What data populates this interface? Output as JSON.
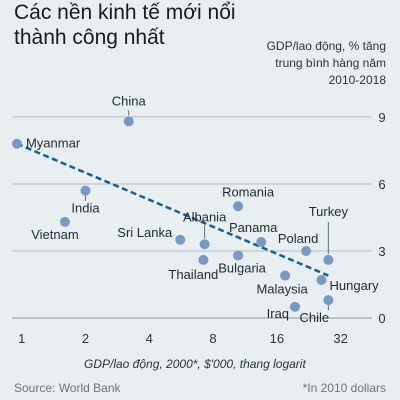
{
  "chart_data": {
    "type": "scatter",
    "title": "Các nền kinh tế mới nổi thành công nhất",
    "ylabel_lines": [
      "GDP/lao động, % tăng",
      "trung bình hàng năm",
      "2010-2018"
    ],
    "xlabel": "GDP/lao động, 2000*, $'000, thang logarit",
    "x_scale": "log",
    "x_ticks": [
      1,
      2,
      4,
      8,
      16,
      32
    ],
    "x_tick_labels": [
      "1",
      "2",
      "4",
      "8",
      "16",
      "32"
    ],
    "xlim": [
      0.9,
      45
    ],
    "y_ticks": [
      0,
      3,
      6,
      9
    ],
    "y_tick_labels": [
      "0",
      "3",
      "6",
      "9"
    ],
    "ylim": [
      0,
      9.4
    ],
    "grid": "horizontal",
    "points": [
      {
        "label": "Myanmar",
        "x": 0.95,
        "y": 7.8
      },
      {
        "label": "China",
        "x": 3.2,
        "y": 8.8
      },
      {
        "label": "India",
        "x": 2.0,
        "y": 5.7
      },
      {
        "label": "Vietnam",
        "x": 1.6,
        "y": 4.3
      },
      {
        "label": "Romania",
        "x": 10.5,
        "y": 5.0
      },
      {
        "label": "Sri Lanka",
        "x": 5.6,
        "y": 3.5
      },
      {
        "label": "Albania",
        "x": 7.3,
        "y": 3.3
      },
      {
        "label": "Thailand",
        "x": 7.2,
        "y": 2.6
      },
      {
        "label": "Bulgaria",
        "x": 10.5,
        "y": 2.8
      },
      {
        "label": "Panama",
        "x": 13.5,
        "y": 3.4
      },
      {
        "label": "Poland",
        "x": 22,
        "y": 3.0
      },
      {
        "label": "Turkey",
        "x": 28,
        "y": 2.6
      },
      {
        "label": "Malaysia",
        "x": 17.5,
        "y": 1.9
      },
      {
        "label": "Hungary",
        "x": 26,
        "y": 1.7
      },
      {
        "label": "Iraq",
        "x": 19.5,
        "y": 0.5
      },
      {
        "label": "Chile",
        "x": 28,
        "y": 0.8
      }
    ],
    "trendline": {
      "x": [
        0.95,
        28
      ],
      "y": [
        7.8,
        1.9
      ]
    },
    "colors": {
      "point": "#7a98c1",
      "trend": "#1a5e8f",
      "grid": "#b4bcc2"
    }
  },
  "source": "Source: World Bank",
  "footnote": "*In 2010 dollars"
}
